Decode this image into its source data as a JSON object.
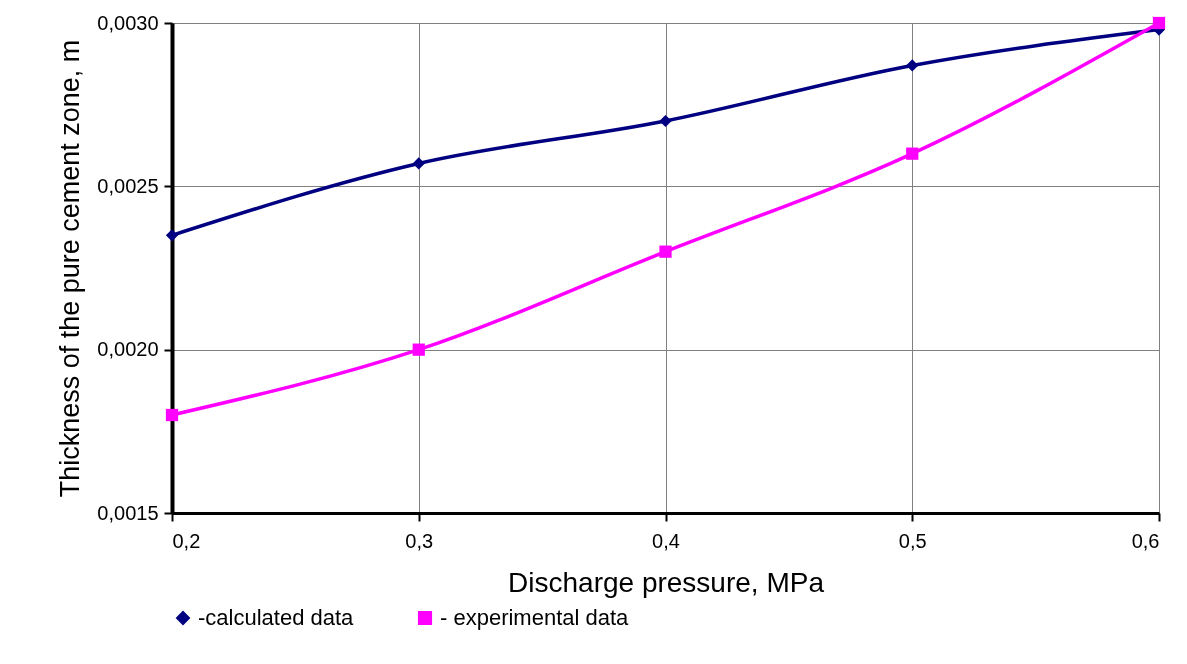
{
  "chart_data": {
    "type": "line",
    "xlabel": "Discharge pressure, MPa",
    "ylabel": "Thickness of the pure cement zone, m",
    "x": [
      0.2,
      0.3,
      0.4,
      0.5,
      0.6
    ],
    "series": [
      {
        "name": "-calculated data",
        "color": "#000080",
        "marker": "diamond",
        "values": [
          0.00235,
          0.00257,
          0.0027,
          0.00287,
          0.00298
        ]
      },
      {
        "name": "- experimental data",
        "color": "#ff00ff",
        "marker": "square",
        "values": [
          0.0018,
          0.002,
          0.0023,
          0.0026,
          0.003
        ]
      }
    ],
    "xlim": [
      0.2,
      0.6
    ],
    "xticks": [
      {
        "value": 0.2,
        "label": "0,2"
      },
      {
        "value": 0.3,
        "label": "0,3"
      },
      {
        "value": 0.4,
        "label": "0,4"
      },
      {
        "value": 0.5,
        "label": "0,5"
      },
      {
        "value": 0.6,
        "label": "0,6"
      }
    ],
    "ylim": [
      0.0015,
      0.003
    ],
    "yticks": [
      {
        "value": 0.0015,
        "label": "0,0015"
      },
      {
        "value": 0.002,
        "label": "0,0020"
      },
      {
        "value": 0.0025,
        "label": "0,0025"
      },
      {
        "value": 0.003,
        "label": "0,0030"
      }
    ],
    "grid": true,
    "legend": "bottom",
    "line_style": "solid"
  }
}
